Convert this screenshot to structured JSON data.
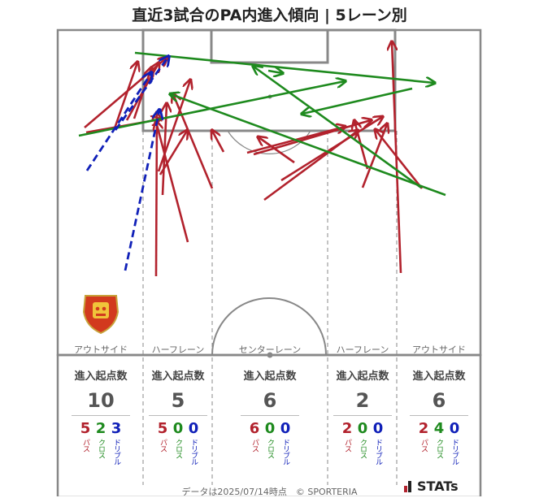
{
  "title": "直近3試合のPA内進入傾向 | 5レーン別",
  "lanes": [
    {
      "name": "アウトサイド",
      "header": "進入起点数",
      "total": "10",
      "pass": "5",
      "cross": "2",
      "dribble": "3"
    },
    {
      "name": "ハーフレーン",
      "header": "進入起点数",
      "total": "5",
      "pass": "5",
      "cross": "0",
      "dribble": "0"
    },
    {
      "name": "センターレーン",
      "header": "進入起点数",
      "total": "6",
      "pass": "6",
      "cross": "0",
      "dribble": "0"
    },
    {
      "name": "ハーフレーン",
      "header": "進入起点数",
      "total": "2",
      "pass": "2",
      "cross": "0",
      "dribble": "0"
    },
    {
      "name": "アウトサイド",
      "header": "進入起点数",
      "total": "6",
      "pass": "2",
      "cross": "4",
      "dribble": "0"
    }
  ],
  "labels": {
    "pass": "パス",
    "cross": "クロス",
    "dribble": "ドリブル"
  },
  "colors": {
    "pass": "#b2222d",
    "cross": "#1e8a1e",
    "dribble": "#1020b8",
    "pitch_line": "#888888"
  },
  "team_emblem": "shield-emblem",
  "footer": "データは2025/07/14時点　© SPORTERIA",
  "brand": "STATs"
}
